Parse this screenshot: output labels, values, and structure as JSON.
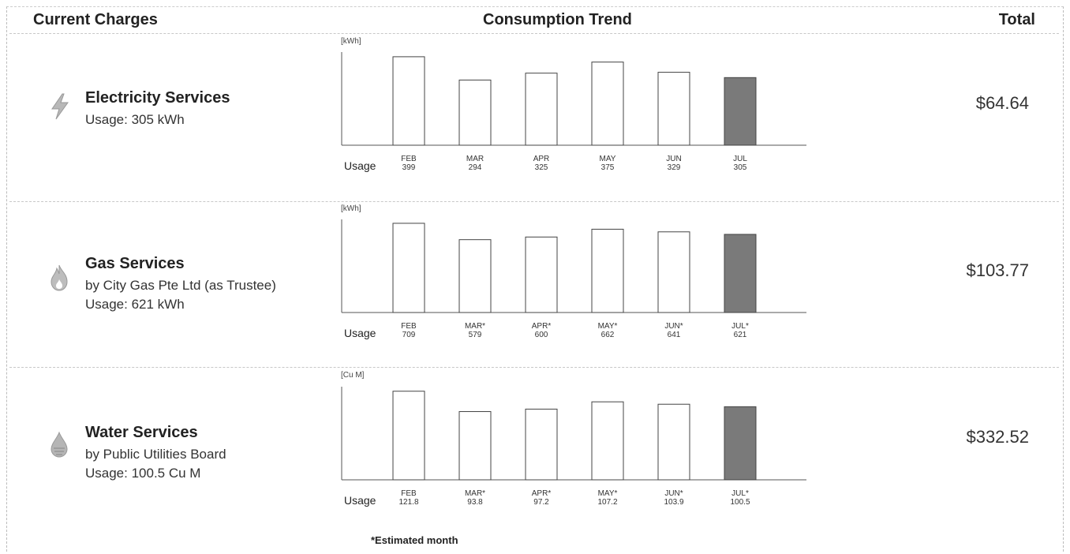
{
  "header": {
    "col1": "Current Charges",
    "col2": "Consumption Trend",
    "col3": "Total"
  },
  "services": [
    {
      "title": "Electricity Services",
      "lines": [
        "Usage: 305 kWh"
      ],
      "total": "$64.64",
      "icon": "lightning-icon"
    },
    {
      "title": "Gas Services",
      "lines": [
        "by City Gas Pte Ltd (as Trustee)",
        "Usage: 621 kWh"
      ],
      "total": "$103.77",
      "icon": "flame-icon"
    },
    {
      "title": "Water Services",
      "lines": [
        "by Public Utilities Board",
        "Usage: 100.5 Cu M"
      ],
      "total": "$332.52",
      "icon": "water-drop-icon"
    }
  ],
  "footnote": "*Estimated month",
  "colors": {
    "bar_fill": "#ffffff",
    "bar_current": "#7a7a7a",
    "axis": "#555555"
  },
  "chart_data": [
    {
      "type": "bar",
      "unit": "[kWh]",
      "row_label": "Usage",
      "categories": [
        "FEB",
        "MAR",
        "APR",
        "MAY",
        "JUN",
        "JUL"
      ],
      "values": [
        399,
        294,
        325,
        375,
        329,
        305
      ],
      "value_labels": [
        "399",
        "294",
        "325",
        "375",
        "329",
        "305"
      ],
      "highlight_index": 5,
      "ylim": [
        0,
        420
      ]
    },
    {
      "type": "bar",
      "unit": "[kWh]",
      "row_label": "Usage",
      "categories": [
        "FEB",
        "MAR*",
        "APR*",
        "MAY*",
        "JUN*",
        "JUL*"
      ],
      "values": [
        709,
        579,
        600,
        662,
        641,
        621
      ],
      "value_labels": [
        "709",
        "579",
        "600",
        "662",
        "641",
        "621"
      ],
      "highlight_index": 5,
      "ylim": [
        0,
        740
      ]
    },
    {
      "type": "bar",
      "unit": "[Cu M]",
      "row_label": "Usage",
      "categories": [
        "FEB",
        "MAR*",
        "APR*",
        "MAY*",
        "JUN*",
        "JUL*"
      ],
      "values": [
        121.8,
        93.8,
        97.2,
        107.2,
        103.9,
        100.5
      ],
      "value_labels": [
        "121.8",
        "93.8",
        "97.2",
        "107.2",
        "103.9",
        "100.5"
      ],
      "highlight_index": 5,
      "ylim": [
        0,
        128
      ]
    }
  ]
}
